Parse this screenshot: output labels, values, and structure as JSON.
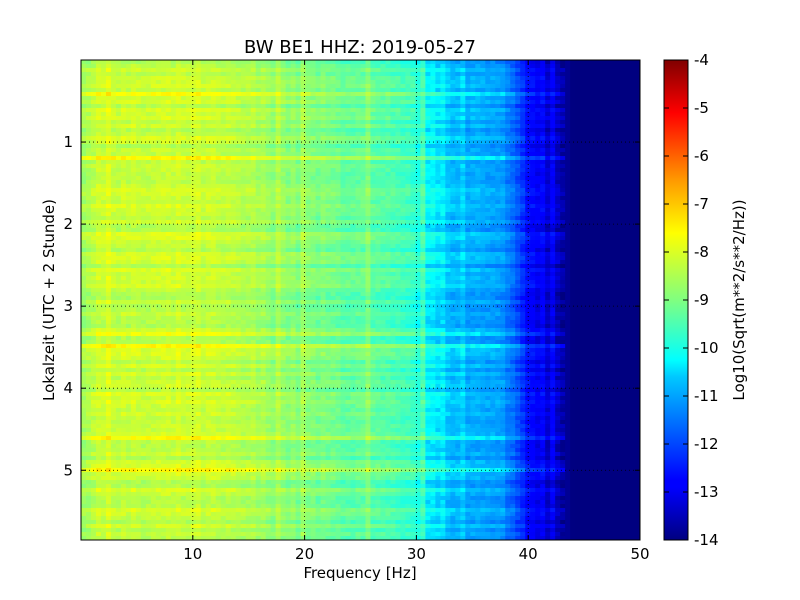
{
  "chart_data": {
    "type": "heatmap",
    "title": "BW BE1 HHZ: 2019-05-27",
    "xlabel": "Frequency [Hz]",
    "ylabel": "Lokalzeit (UTC + 2 Stunde)",
    "xlim": [
      0,
      50
    ],
    "ylim": [
      5.85,
      0
    ],
    "x_ticks": [
      10,
      20,
      30,
      40,
      50
    ],
    "y_ticks": [
      1,
      2,
      3,
      4,
      5
    ],
    "grid": true,
    "colormap": "jet",
    "colorbar": {
      "label": "Log10(Sqrt(m**2/s**2/Hz))",
      "min": -14,
      "max": -4,
      "ticks": [
        -4,
        -5,
        -6,
        -7,
        -8,
        -9,
        -10,
        -11,
        -12,
        -13,
        -14
      ]
    },
    "spectral_profile": {
      "frequency_hz": [
        0,
        2,
        5,
        10,
        15,
        20,
        25,
        28,
        30,
        32,
        35,
        38,
        40,
        42,
        44,
        50
      ],
      "log10_amplitude": [
        -8.6,
        -8.2,
        -8.3,
        -8.2,
        -8.5,
        -9.0,
        -9.3,
        -9.6,
        -9.8,
        -10.6,
        -10.9,
        -11.2,
        -12.6,
        -13.3,
        -14.0,
        -14.0
      ]
    }
  }
}
